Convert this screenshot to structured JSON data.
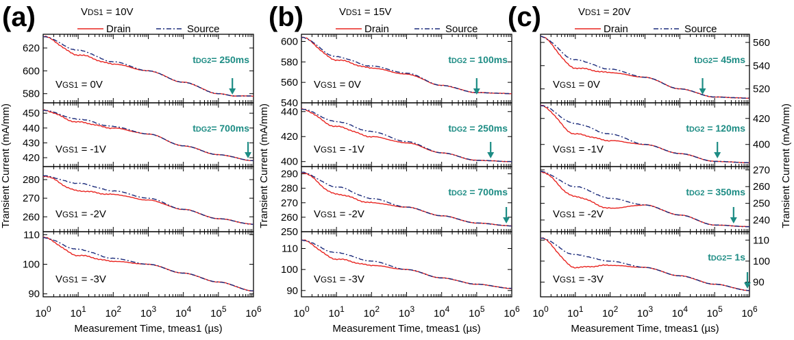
{
  "colors": {
    "drain": "#e8231f",
    "source": "#1a2a7a",
    "annotation": "#1d8c84"
  },
  "chart_data": [
    {
      "type": "line",
      "panel_label": "(a)",
      "vds_label": "VDS1 = 10V",
      "legend": [
        "Drain",
        "Source"
      ],
      "ylabel": "Transient Current (mA/mm)",
      "xlabel": "Measurement Time, tmeas1 (µs)",
      "x_scale": "log",
      "xlim": [
        1,
        1000000
      ],
      "x_ticks": [
        "10^0",
        "10^1",
        "10^2",
        "10^3",
        "10^4",
        "10^5",
        "10^6"
      ],
      "subplots": [
        {
          "vgs": "VGS1 = 0V",
          "tdg2": "tDG2= 250ms",
          "arrow_x": 250000,
          "ylim": [
            572,
            632
          ],
          "yticks": [
            580,
            600,
            620
          ],
          "series": [
            {
              "name": "Drain",
              "x": [
                1,
                10,
                100,
                1000,
                10000,
                100000,
                300000,
                1000000
              ],
              "y": [
                630,
                614,
                606,
                600,
                590,
                580,
                578,
                578
              ]
            },
            {
              "name": "Source",
              "x": [
                1,
                10,
                100,
                1000,
                10000,
                100000,
                300000,
                1000000
              ],
              "y": [
                630,
                618,
                608,
                600,
                590,
                580,
                578,
                578
              ]
            }
          ]
        },
        {
          "vgs": "VGS1 = -1V",
          "tdg2": "tDG2= 700ms",
          "arrow_x": 700000,
          "ylim": [
            414,
            457
          ],
          "yticks": [
            420,
            430,
            440,
            450
          ],
          "series": [
            {
              "name": "Drain",
              "x": [
                1,
                10,
                100,
                1000,
                10000,
                100000,
                1000000
              ],
              "y": [
                452,
                444,
                440,
                436,
                428,
                422,
                418
              ]
            },
            {
              "name": "Source",
              "x": [
                1,
                10,
                100,
                1000,
                10000,
                100000,
                1000000
              ],
              "y": [
                452,
                446,
                441,
                436,
                428,
                422,
                418
              ]
            }
          ]
        },
        {
          "vgs": "VGS1 = -2V",
          "tdg2": "",
          "arrow_x": null,
          "ylim": [
            252,
            287
          ],
          "yticks": [
            260,
            270,
            280
          ],
          "series": [
            {
              "name": "Drain",
              "x": [
                1,
                10,
                100,
                1000,
                10000,
                100000,
                1000000
              ],
              "y": [
                282,
                274,
                272,
                269,
                264,
                259,
                256
              ]
            },
            {
              "name": "Source",
              "x": [
                1,
                10,
                100,
                1000,
                10000,
                100000,
                1000000
              ],
              "y": [
                282,
                278,
                274,
                270,
                264,
                259,
                256
              ]
            }
          ]
        },
        {
          "vgs": "VGS1 = -3V",
          "tdg2": "",
          "arrow_x": null,
          "ylim": [
            89,
            111
          ],
          "yticks": [
            90,
            100,
            110
          ],
          "series": [
            {
              "name": "Drain",
              "x": [
                1,
                10,
                100,
                1000,
                10000,
                100000,
                1000000
              ],
              "y": [
                109,
                103,
                101,
                100,
                97,
                94,
                91
              ]
            },
            {
              "name": "Source",
              "x": [
                1,
                10,
                100,
                1000,
                10000,
                100000,
                1000000
              ],
              "y": [
                109,
                105,
                102,
                100,
                97,
                94,
                91
              ]
            }
          ]
        }
      ]
    },
    {
      "type": "line",
      "panel_label": "(b)",
      "vds_label": "VDS1 = 15V",
      "legend": [
        "Drain",
        "Source"
      ],
      "ylabel": "Transient Current (mA/mm)",
      "xlabel": "Measurement Time, tmeas1 (µs)",
      "x_scale": "log",
      "xlim": [
        1,
        1000000
      ],
      "x_ticks": [
        "10^0",
        "10^1",
        "10^2",
        "10^3",
        "10^4",
        "10^5",
        "10^6"
      ],
      "subplots": [
        {
          "vgs": "VGS1 = 0V",
          "tdg2": "tDG2 = 100ms",
          "arrow_x": 100000,
          "ylim": [
            540,
            607
          ],
          "yticks": [
            540,
            560,
            580,
            600
          ],
          "series": [
            {
              "name": "Drain",
              "x": [
                1,
                10,
                100,
                1000,
                10000,
                100000,
                1000000
              ],
              "y": [
                604,
                582,
                574,
                568,
                557,
                550,
                549
              ]
            },
            {
              "name": "Source",
              "x": [
                1,
                10,
                100,
                1000,
                10000,
                100000,
                1000000
              ],
              "y": [
                604,
                585,
                576,
                569,
                557,
                550,
                549
              ]
            }
          ]
        },
        {
          "vgs": "VGS1 = -1V",
          "tdg2": "tDG2 = 250ms",
          "arrow_x": 250000,
          "ylim": [
            396,
            447
          ],
          "yticks": [
            400,
            420,
            440
          ],
          "series": [
            {
              "name": "Drain",
              "x": [
                1,
                10,
                100,
                1000,
                10000,
                100000,
                1000000
              ],
              "y": [
                442,
                428,
                420,
                415,
                407,
                401,
                400
              ]
            },
            {
              "name": "Source",
              "x": [
                1,
                10,
                100,
                1000,
                10000,
                100000,
                1000000
              ],
              "y": [
                442,
                432,
                424,
                416,
                407,
                401,
                400
              ]
            }
          ]
        },
        {
          "vgs": "VGS1 = -2V",
          "tdg2": "tDG2 = 700ms",
          "arrow_x": 700000,
          "ylim": [
            250,
            295
          ],
          "yticks": [
            250,
            260,
            270,
            280,
            290
          ],
          "series": [
            {
              "name": "Drain",
              "x": [
                1,
                10,
                100,
                1000,
                10000,
                100000,
                1000000
              ],
              "y": [
                291,
                276,
                270,
                267,
                261,
                256,
                254
              ]
            },
            {
              "name": "Source",
              "x": [
                1,
                10,
                100,
                1000,
                10000,
                100000,
                1000000
              ],
              "y": [
                291,
                281,
                273,
                267,
                261,
                256,
                254
              ]
            }
          ]
        },
        {
          "vgs": "VGS1 = -3V",
          "tdg2": "",
          "arrow_x": null,
          "ylim": [
            87,
            118
          ],
          "yticks": [
            90,
            100,
            110
          ],
          "series": [
            {
              "name": "Drain",
              "x": [
                1,
                10,
                100,
                1000,
                10000,
                100000,
                1000000
              ],
              "y": [
                114,
                105,
                102,
                100,
                96,
                93,
                91
              ]
            },
            {
              "name": "Source",
              "x": [
                1,
                10,
                100,
                1000,
                10000,
                100000,
                1000000
              ],
              "y": [
                114,
                108,
                104,
                100,
                96,
                93,
                91
              ]
            }
          ]
        }
      ]
    },
    {
      "type": "line",
      "panel_label": "(c)",
      "vds_label": "VDS1 = 20V",
      "legend": [
        "Drain",
        "Source"
      ],
      "ylabel": "Transient Current (mA/mm)",
      "xlabel": "Measurement Time, tmeas1 (µs)",
      "x_scale": "log",
      "xlim": [
        1,
        1000000
      ],
      "x_ticks": [
        "10^0",
        "10^1",
        "10^2",
        "10^3",
        "10^4",
        "10^5",
        "10^6"
      ],
      "subplots": [
        {
          "vgs": "VGS1 = 0V",
          "tdg2": "tDG2= 45ms",
          "arrow_x": 45000,
          "ylim": [
            508,
            567
          ],
          "yticks": [
            520,
            540,
            560
          ],
          "series": [
            {
              "name": "Drain",
              "x": [
                1,
                10,
                100,
                1000,
                10000,
                100000,
                1000000
              ],
              "y": [
                565,
                538,
                534,
                530,
                520,
                513,
                512
              ]
            },
            {
              "name": "Source",
              "x": [
                1,
                10,
                100,
                1000,
                10000,
                100000,
                1000000
              ],
              "y": [
                565,
                545,
                537,
                530,
                520,
                513,
                512
              ]
            }
          ]
        },
        {
          "vgs": "VGS1 = -1V",
          "tdg2": "tDG2 = 120ms",
          "arrow_x": 120000,
          "ylim": [
            383,
            432
          ],
          "yticks": [
            400,
            420
          ],
          "series": [
            {
              "name": "Drain",
              "x": [
                1,
                10,
                100,
                1000,
                10000,
                100000,
                1000000
              ],
              "y": [
                430,
                408,
                403,
                400,
                393,
                387,
                386
              ]
            },
            {
              "name": "Source",
              "x": [
                1,
                10,
                100,
                1000,
                10000,
                100000,
                1000000
              ],
              "y": [
                430,
                416,
                408,
                400,
                393,
                387,
                386
              ]
            }
          ]
        },
        {
          "vgs": "VGS1 = -2V",
          "tdg2": "tDG2 = 350ms",
          "arrow_x": 350000,
          "ylim": [
            233,
            272
          ],
          "yticks": [
            240,
            250,
            260,
            270
          ],
          "series": [
            {
              "name": "Drain",
              "x": [
                1,
                10,
                100,
                1000,
                10000,
                100000,
                1000000
              ],
              "y": [
                269,
                254,
                247,
                249,
                243,
                237,
                236
              ]
            },
            {
              "name": "Source",
              "x": [
                1,
                10,
                100,
                1000,
                10000,
                100000,
                1000000
              ],
              "y": [
                269,
                260,
                253,
                249,
                243,
                237,
                236
              ]
            }
          ]
        },
        {
          "vgs": "VGS1 = -3V",
          "tdg2": "tDG2= 1s",
          "arrow_x": 1000000,
          "ylim": [
            83,
            114
          ],
          "yticks": [
            90,
            100,
            110
          ],
          "series": [
            {
              "name": "Drain",
              "x": [
                1,
                10,
                100,
                1000,
                10000,
                100000,
                1000000
              ],
              "y": [
                111,
                97,
                98,
                97,
                93,
                89,
                86
              ]
            },
            {
              "name": "Source",
              "x": [
                1,
                10,
                100,
                1000,
                10000,
                100000,
                1000000
              ],
              "y": [
                111,
                103,
                100,
                97,
                93,
                89,
                86
              ]
            }
          ]
        }
      ]
    }
  ]
}
